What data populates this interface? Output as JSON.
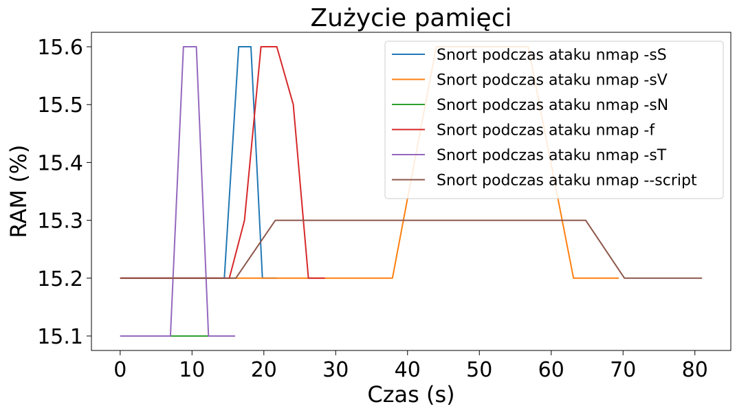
{
  "chart_data": {
    "type": "line",
    "title": "Zużycie pamięci",
    "xlabel": "Czas (s)",
    "ylabel": "RAM (%)",
    "xlim": [
      -4,
      85
    ],
    "ylim": [
      15.075,
      15.625
    ],
    "xticks": [
      "0",
      "10",
      "20",
      "30",
      "40",
      "50",
      "60",
      "70",
      "80"
    ],
    "yticks": [
      "15.1",
      "15.2",
      "15.3",
      "15.4",
      "15.5",
      "15.6"
    ],
    "grid": false,
    "legend_position": "top-right",
    "series": [
      {
        "name": "Snort podczas ataku nmap -sS",
        "color": "#1f77b4",
        "x": [
          0,
          14.5,
          16.5,
          18.2,
          19.8,
          21.8
        ],
        "y": [
          15.2,
          15.2,
          15.6,
          15.6,
          15.2,
          15.2
        ]
      },
      {
        "name": "Snort podczas ataku nmap -sV",
        "color": "#ff7f0e",
        "x": [
          0,
          37.9,
          44,
          56.8,
          63.1,
          69.4
        ],
        "y": [
          15.2,
          15.2,
          15.6,
          15.6,
          15.2,
          15.2
        ]
      },
      {
        "name": "Snort podczas ataku nmap -sN",
        "color": "#2ca02c",
        "x": [
          0,
          16
        ],
        "y": [
          15.1,
          15.1
        ]
      },
      {
        "name": "Snort podczas ataku nmap -f",
        "color": "#d62728",
        "x": [
          0,
          15.2,
          17.3,
          19.6,
          21.8,
          24.1,
          26.2,
          28.5
        ],
        "y": [
          15.2,
          15.2,
          15.3,
          15.6,
          15.6,
          15.5,
          15.2,
          15.2
        ]
      },
      {
        "name": "Snort podczas ataku nmap -sT",
        "color": "#9467bd",
        "x": [
          0,
          7,
          8.8,
          10.6,
          12.3,
          16
        ],
        "y": [
          15.1,
          15.1,
          15.6,
          15.6,
          15.1,
          15.1
        ]
      },
      {
        "name": "Snort podczas ataku nmap --script",
        "color": "#8c564b",
        "x": [
          0,
          16.1,
          21.6,
          64.8,
          70.2,
          81
        ],
        "y": [
          15.2,
          15.2,
          15.3,
          15.3,
          15.2,
          15.2
        ]
      }
    ]
  }
}
